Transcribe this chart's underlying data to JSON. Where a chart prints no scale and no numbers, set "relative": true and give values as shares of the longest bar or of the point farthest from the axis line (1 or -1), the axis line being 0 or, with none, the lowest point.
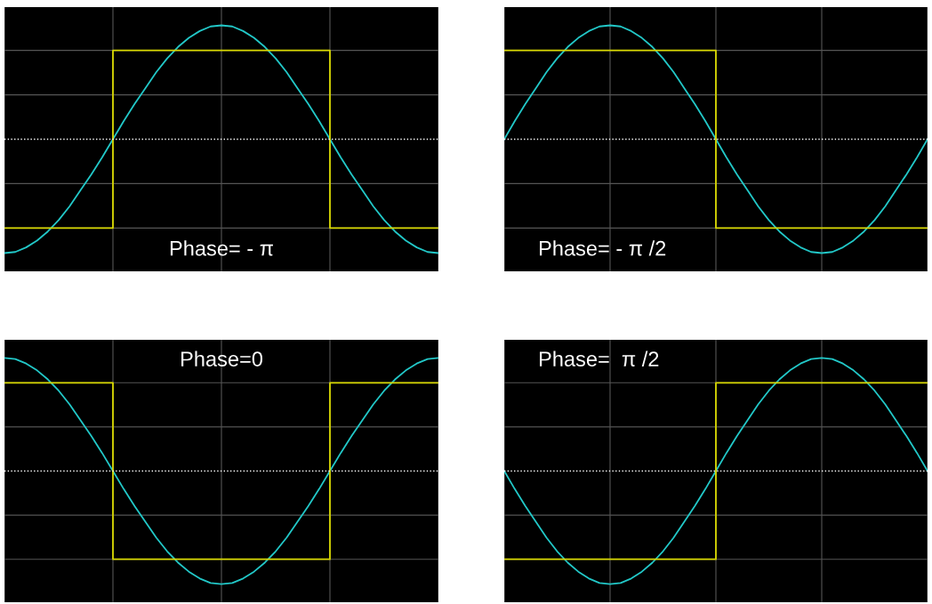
{
  "chart_data": [
    {
      "type": "line",
      "relative": true,
      "grid": true,
      "legend": false,
      "tick_labels": false,
      "annotations": [
        "Phase= - π"
      ],
      "categories": [
        null,
        null,
        null,
        null,
        null,
        null,
        null,
        null,
        null,
        null,
        null,
        null,
        null,
        null,
        null,
        null,
        null,
        null,
        null,
        null,
        null,
        null,
        null,
        null,
        null,
        null,
        null,
        null,
        null,
        null,
        null,
        null,
        null,
        null,
        null,
        null,
        null,
        null,
        null,
        null,
        null
      ],
      "ref_lines": [
        {
          "axis": "y",
          "value": 0,
          "color": "#ffffff",
          "line_style": "dotted"
        }
      ],
      "series": [
        {
          "color": "#22c8c8",
          "values": [
            -1,
            -0.99,
            -0.95,
            -0.89,
            -0.81,
            -0.71,
            -0.59,
            -0.45,
            -0.31,
            -0.16,
            0,
            0.16,
            0.31,
            0.45,
            0.59,
            0.71,
            0.81,
            0.89,
            0.95,
            0.99,
            1,
            0.99,
            0.95,
            0.89,
            0.81,
            0.71,
            0.59,
            0.45,
            0.31,
            0.16,
            0,
            -0.16,
            -0.31,
            -0.45,
            -0.59,
            -0.71,
            -0.81,
            -0.89,
            -0.95,
            -0.99,
            -1
          ]
        },
        {
          "type": "step",
          "color": "#d8d800",
          "values": [
            -0.78,
            -0.78,
            -0.78,
            -0.78,
            -0.78,
            -0.78,
            -0.78,
            -0.78,
            -0.78,
            -0.78,
            0.78,
            0.78,
            0.78,
            0.78,
            0.78,
            0.78,
            0.78,
            0.78,
            0.78,
            0.78,
            0.78,
            0.78,
            0.78,
            0.78,
            0.78,
            0.78,
            0.78,
            0.78,
            0.78,
            0.78,
            -0.78,
            -0.78,
            -0.78,
            -0.78,
            -0.78,
            -0.78,
            -0.78,
            -0.78,
            -0.78,
            -0.78,
            -0.78
          ]
        }
      ]
    },
    {
      "type": "line",
      "relative": true,
      "grid": true,
      "legend": false,
      "tick_labels": false,
      "annotations": [
        "Phase= - π /2"
      ],
      "categories": [
        null,
        null,
        null,
        null,
        null,
        null,
        null,
        null,
        null,
        null,
        null,
        null,
        null,
        null,
        null,
        null,
        null,
        null,
        null,
        null,
        null,
        null,
        null,
        null,
        null,
        null,
        null,
        null,
        null,
        null,
        null,
        null,
        null,
        null,
        null,
        null,
        null,
        null,
        null,
        null,
        null
      ],
      "ref_lines": [
        {
          "axis": "y",
          "value": 0,
          "color": "#ffffff",
          "line_style": "dotted"
        }
      ],
      "series": [
        {
          "color": "#22c8c8",
          "values": [
            0,
            0.16,
            0.31,
            0.45,
            0.59,
            0.71,
            0.81,
            0.89,
            0.95,
            0.99,
            1,
            0.99,
            0.95,
            0.89,
            0.81,
            0.71,
            0.59,
            0.45,
            0.31,
            0.16,
            0,
            -0.16,
            -0.31,
            -0.45,
            -0.59,
            -0.71,
            -0.81,
            -0.89,
            -0.95,
            -0.99,
            -1,
            -0.99,
            -0.95,
            -0.89,
            -0.81,
            -0.71,
            -0.59,
            -0.45,
            -0.31,
            -0.16,
            0
          ]
        },
        {
          "type": "step",
          "color": "#d8d800",
          "values": [
            0.78,
            0.78,
            0.78,
            0.78,
            0.78,
            0.78,
            0.78,
            0.78,
            0.78,
            0.78,
            0.78,
            0.78,
            0.78,
            0.78,
            0.78,
            0.78,
            0.78,
            0.78,
            0.78,
            0.78,
            -0.78,
            -0.78,
            -0.78,
            -0.78,
            -0.78,
            -0.78,
            -0.78,
            -0.78,
            -0.78,
            -0.78,
            -0.78,
            -0.78,
            -0.78,
            -0.78,
            -0.78,
            -0.78,
            -0.78,
            -0.78,
            -0.78,
            -0.78,
            -0.78
          ]
        }
      ]
    },
    {
      "type": "line",
      "relative": true,
      "grid": true,
      "legend": false,
      "tick_labels": false,
      "annotations": [
        "Phase=0"
      ],
      "categories": [
        null,
        null,
        null,
        null,
        null,
        null,
        null,
        null,
        null,
        null,
        null,
        null,
        null,
        null,
        null,
        null,
        null,
        null,
        null,
        null,
        null,
        null,
        null,
        null,
        null,
        null,
        null,
        null,
        null,
        null,
        null,
        null,
        null,
        null,
        null,
        null,
        null,
        null,
        null,
        null,
        null
      ],
      "ref_lines": [
        {
          "axis": "y",
          "value": 0,
          "color": "#ffffff",
          "line_style": "dotted"
        }
      ],
      "series": [
        {
          "color": "#22c8c8",
          "values": [
            1,
            0.99,
            0.95,
            0.89,
            0.81,
            0.71,
            0.59,
            0.45,
            0.31,
            0.16,
            0,
            -0.16,
            -0.31,
            -0.45,
            -0.59,
            -0.71,
            -0.81,
            -0.89,
            -0.95,
            -0.99,
            -1,
            -0.99,
            -0.95,
            -0.89,
            -0.81,
            -0.71,
            -0.59,
            -0.45,
            -0.31,
            -0.16,
            0,
            0.16,
            0.31,
            0.45,
            0.59,
            0.71,
            0.81,
            0.89,
            0.95,
            0.99,
            1
          ]
        },
        {
          "type": "step",
          "color": "#d8d800",
          "values": [
            0.78,
            0.78,
            0.78,
            0.78,
            0.78,
            0.78,
            0.78,
            0.78,
            0.78,
            0.78,
            -0.78,
            -0.78,
            -0.78,
            -0.78,
            -0.78,
            -0.78,
            -0.78,
            -0.78,
            -0.78,
            -0.78,
            -0.78,
            -0.78,
            -0.78,
            -0.78,
            -0.78,
            -0.78,
            -0.78,
            -0.78,
            -0.78,
            -0.78,
            0.78,
            0.78,
            0.78,
            0.78,
            0.78,
            0.78,
            0.78,
            0.78,
            0.78,
            0.78,
            0.78
          ]
        }
      ]
    },
    {
      "type": "line",
      "relative": true,
      "grid": true,
      "legend": false,
      "tick_labels": false,
      "annotations": [
        "Phase=  π /2"
      ],
      "categories": [
        null,
        null,
        null,
        null,
        null,
        null,
        null,
        null,
        null,
        null,
        null,
        null,
        null,
        null,
        null,
        null,
        null,
        null,
        null,
        null,
        null,
        null,
        null,
        null,
        null,
        null,
        null,
        null,
        null,
        null,
        null,
        null,
        null,
        null,
        null,
        null,
        null,
        null,
        null,
        null,
        null
      ],
      "ref_lines": [
        {
          "axis": "y",
          "value": 0,
          "color": "#ffffff",
          "line_style": "dotted"
        }
      ],
      "series": [
        {
          "color": "#22c8c8",
          "values": [
            0,
            -0.16,
            -0.31,
            -0.45,
            -0.59,
            -0.71,
            -0.81,
            -0.89,
            -0.95,
            -0.99,
            -1,
            -0.99,
            -0.95,
            -0.89,
            -0.81,
            -0.71,
            -0.59,
            -0.45,
            -0.31,
            -0.16,
            0,
            0.16,
            0.31,
            0.45,
            0.59,
            0.71,
            0.81,
            0.89,
            0.95,
            0.99,
            1,
            0.99,
            0.95,
            0.89,
            0.81,
            0.71,
            0.59,
            0.45,
            0.31,
            0.16,
            0
          ]
        },
        {
          "type": "step",
          "color": "#d8d800",
          "values": [
            -0.78,
            -0.78,
            -0.78,
            -0.78,
            -0.78,
            -0.78,
            -0.78,
            -0.78,
            -0.78,
            -0.78,
            -0.78,
            -0.78,
            -0.78,
            -0.78,
            -0.78,
            -0.78,
            -0.78,
            -0.78,
            -0.78,
            -0.78,
            0.78,
            0.78,
            0.78,
            0.78,
            0.78,
            0.78,
            0.78,
            0.78,
            0.78,
            0.78,
            0.78,
            0.78,
            0.78,
            0.78,
            0.78,
            0.78,
            0.78,
            0.78,
            0.78,
            0.78,
            0.78
          ]
        }
      ]
    }
  ]
}
